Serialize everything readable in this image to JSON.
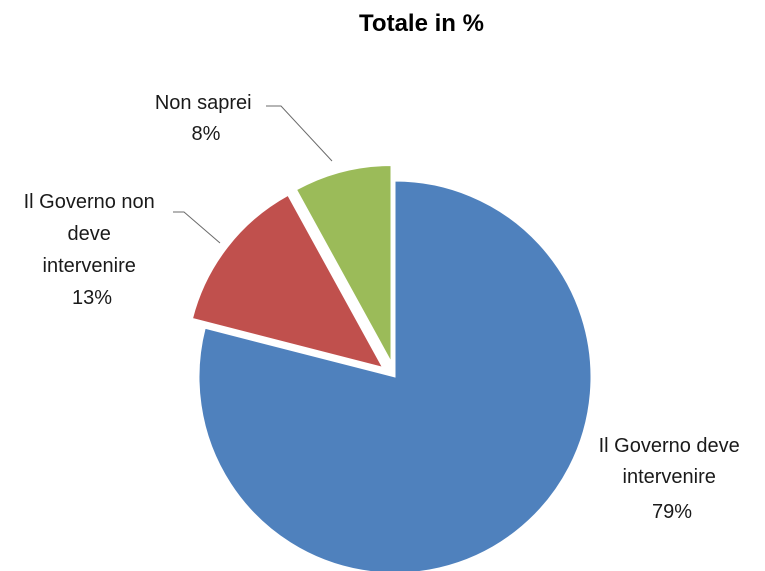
{
  "chart_data": {
    "type": "pie",
    "title": "Totale in %",
    "slices": [
      {
        "label": "Il Governo deve intervenire",
        "value": 79,
        "value_label": "79%",
        "color": "#4f81bd",
        "exploded": false
      },
      {
        "label": "Il Governo non deve intervenire",
        "value": 13,
        "value_label": "13%",
        "color": "#c0504d",
        "exploded": true
      },
      {
        "label": "Non saprei",
        "value": 8,
        "value_label": "8%",
        "color": "#9bbb59",
        "exploded": true
      }
    ],
    "labels_display": {
      "governo_deve": [
        "Il Governo deve",
        "intervenire",
        "79%"
      ],
      "governo_non_deve": [
        "Il Governo non",
        "deve",
        "intervenire",
        "13%"
      ],
      "non_saprei": [
        "Non saprei",
        "8%"
      ]
    },
    "start_angle": "12 o'clock",
    "direction": "clockwise",
    "legend": "none"
  }
}
